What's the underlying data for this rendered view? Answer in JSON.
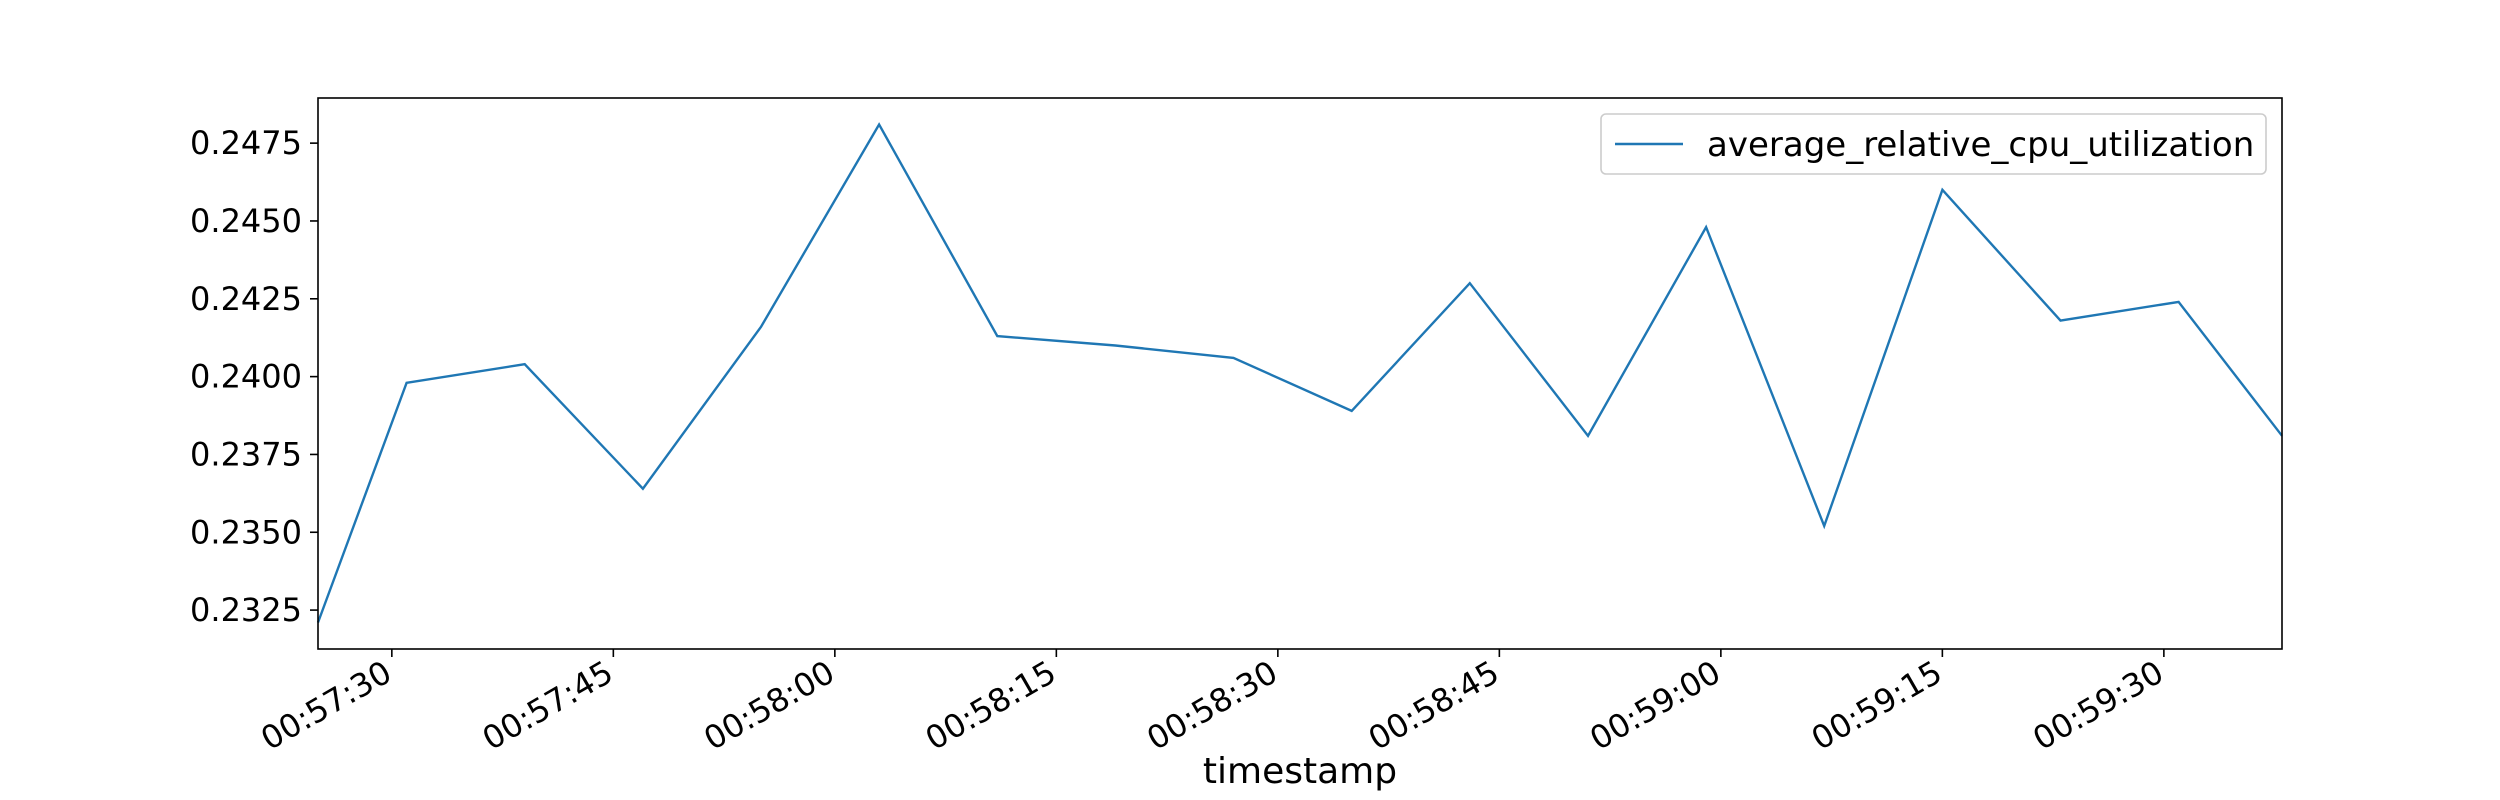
{
  "chart_data": {
    "type": "line",
    "title": "",
    "xlabel": "timestamp",
    "ylabel": "",
    "x": [
      "00:57:25",
      "00:57:31",
      "00:57:39",
      "00:57:47",
      "00:57:55",
      "00:58:03",
      "00:58:11",
      "00:58:19",
      "00:58:27",
      "00:58:35",
      "00:58:43",
      "00:58:51",
      "00:58:59",
      "00:59:07",
      "00:59:15",
      "00:59:23",
      "00:59:31",
      "00:59:38"
    ],
    "series": [
      {
        "name": "average_relative_cpu_utilization",
        "color": "#1f77b4",
        "values": [
          0.2321,
          0.2398,
          0.2404,
          0.2364,
          0.2416,
          0.2481,
          0.2413,
          0.241,
          0.2406,
          0.2389,
          0.243,
          0.2381,
          0.2448,
          0.2352,
          0.246,
          0.2418,
          0.2424,
          0.2381
        ]
      }
    ],
    "xlim": [
      "00:57:25",
      "00:59:38"
    ],
    "ylim": [
      0.23125,
      0.24895
    ],
    "xticks": [
      "00:57:30",
      "00:57:45",
      "00:58:00",
      "00:58:15",
      "00:58:30",
      "00:58:45",
      "00:59:00",
      "00:59:15",
      "00:59:30"
    ],
    "yticks": [
      "0.2325",
      "0.2350",
      "0.2375",
      "0.2400",
      "0.2425",
      "0.2450",
      "0.2475"
    ],
    "legend_position": "top-right",
    "grid": false
  }
}
